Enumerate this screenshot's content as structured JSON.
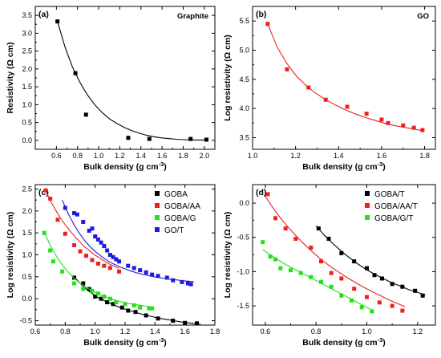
{
  "chart_data": [
    {
      "id": "a",
      "type": "scatter",
      "panel_label": "(a)",
      "inner_title": "Graphite",
      "xlabel": "Bulk density (g cm",
      "xlabel_sup": "-3",
      "xlabel_end": ")",
      "ylabel": "Resistivity (Ω cm)",
      "xlim": [
        0.4,
        2.1
      ],
      "ylim": [
        -0.25,
        3.75
      ],
      "xticks": [
        0.6,
        0.8,
        1.0,
        1.2,
        1.4,
        1.6,
        1.8,
        2.0
      ],
      "xtick_labels": [
        "0.6",
        "0.8",
        "1.0",
        "1.2",
        "1.4",
        "1.6",
        "1.8",
        "2.0"
      ],
      "yticks": [
        0.0,
        0.5,
        1.0,
        1.5,
        2.0,
        2.5,
        3.0,
        3.5
      ],
      "ytick_labels": [
        "0.0",
        "0.5",
        "1.0",
        "1.5",
        "2.0",
        "2.5",
        "3.0",
        "3.5"
      ],
      "grid": false,
      "series": [
        {
          "color": "#000000",
          "marker": "square",
          "x": [
            0.61,
            0.78,
            0.88,
            1.28,
            1.48,
            1.87,
            2.02
          ],
          "y": [
            3.33,
            1.88,
            0.72,
            0.07,
            0.04,
            0.04,
            0.02
          ],
          "fit": {
            "x0": 0.61,
            "x1": 2.02,
            "y": [
              3.33,
              2.62,
              2.06,
              1.63,
              1.28,
              1.0,
              0.78,
              0.6,
              0.47,
              0.36,
              0.27,
              0.2,
              0.14,
              0.1,
              0.07,
              0.05,
              0.03,
              0.02,
              0.01,
              0.01,
              0.01
            ]
          }
        }
      ]
    },
    {
      "id": "b",
      "type": "scatter",
      "panel_label": "(b)",
      "inner_title": "GO",
      "xlabel": "Bulk density (g cm",
      "xlabel_sup": "-3",
      "xlabel_end": ")",
      "ylabel": "Log resistivity (Ω cm)",
      "xlim": [
        1.0,
        1.85
      ],
      "ylim": [
        3.3,
        5.75
      ],
      "xticks": [
        1.0,
        1.2,
        1.4,
        1.6,
        1.8
      ],
      "xtick_labels": [
        "1.0",
        "1.2",
        "1.4",
        "1.6",
        "1.8"
      ],
      "yticks": [
        3.5,
        4.0,
        4.5,
        5.0,
        5.5
      ],
      "ytick_labels": [
        "3.5",
        "4.0",
        "4.5",
        "5.0",
        "5.5"
      ],
      "grid": false,
      "series": [
        {
          "color": "#e8231f",
          "marker": "square",
          "x": [
            1.07,
            1.16,
            1.26,
            1.34,
            1.44,
            1.53,
            1.6,
            1.63,
            1.7,
            1.75,
            1.79
          ],
          "y": [
            5.45,
            4.67,
            4.36,
            4.15,
            4.03,
            3.91,
            3.81,
            3.75,
            3.71,
            3.67,
            3.63
          ],
          "fit": {
            "x0": 1.07,
            "x1": 1.79,
            "y": [
              5.45,
              5.05,
              4.77,
              4.55,
              4.39,
              4.26,
              4.15,
              4.06,
              3.98,
              3.91,
              3.85,
              3.8,
              3.75,
              3.71,
              3.68,
              3.65,
              3.62
            ]
          }
        }
      ]
    },
    {
      "id": "c",
      "type": "scatter",
      "panel_label": "(c)",
      "xlabel": "Bulk density (g cm",
      "xlabel_sup": "-3",
      "xlabel_end": ")",
      "ylabel": "Log resistivity (Ω cm)",
      "xlim": [
        0.6,
        1.8
      ],
      "ylim": [
        -0.6,
        2.6
      ],
      "xticks": [
        0.6,
        0.8,
        1.0,
        1.2,
        1.4,
        1.6,
        1.8
      ],
      "xtick_labels": [
        "0.6",
        "0.8",
        "1.0",
        "1.2",
        "1.4",
        "1.6",
        "1.8"
      ],
      "yticks": [
        -0.5,
        0.0,
        0.5,
        1.0,
        1.5,
        2.0,
        2.5
      ],
      "ytick_labels": [
        "-0.5",
        "0.0",
        "0.5",
        "1.0",
        "1.5",
        "2.0",
        "2.5"
      ],
      "grid": false,
      "legend_position": "top-right",
      "series": [
        {
          "name": "GOBA",
          "color": "#000000",
          "marker": "square",
          "x": [
            0.86,
            0.92,
            0.96,
            1.0,
            1.04,
            1.08,
            1.12,
            1.18,
            1.22,
            1.27,
            1.34,
            1.42,
            1.52,
            1.6,
            1.68
          ],
          "y": [
            0.48,
            0.35,
            0.22,
            0.05,
            0.0,
            -0.08,
            -0.12,
            -0.2,
            -0.27,
            -0.3,
            -0.38,
            -0.45,
            -0.5,
            -0.55,
            -0.56
          ],
          "fit": {
            "x0": 0.86,
            "x1": 1.68,
            "y": [
              0.5,
              0.31,
              0.16,
              0.04,
              -0.05,
              -0.13,
              -0.2,
              -0.26,
              -0.31,
              -0.36,
              -0.4,
              -0.44,
              -0.47,
              -0.5,
              -0.53,
              -0.55,
              -0.57
            ]
          }
        },
        {
          "name": "GOBA/AA",
          "color": "#e8231f",
          "marker": "square",
          "x": [
            0.67,
            0.7,
            0.75,
            0.8,
            0.86,
            0.9,
            0.94,
            0.98,
            1.02,
            1.06,
            1.1,
            1.16
          ],
          "y": [
            2.47,
            2.28,
            1.8,
            1.48,
            1.22,
            1.08,
            0.98,
            0.88,
            0.8,
            0.75,
            0.7,
            0.62
          ],
          "fit": {
            "x0": 0.67,
            "x1": 1.16,
            "y": [
              2.45,
              2.22,
              2.02,
              1.84,
              1.68,
              1.54,
              1.41,
              1.29,
              1.18,
              1.09,
              1.0,
              0.93,
              0.86,
              0.79,
              0.74,
              0.69
            ]
          }
        },
        {
          "name": "GOBA/G",
          "color": "#22e01a",
          "marker": "square",
          "x": [
            0.66,
            0.7,
            0.72,
            0.78,
            0.86,
            0.92,
            0.98,
            1.02,
            1.06,
            1.1,
            1.14,
            1.2,
            1.26,
            1.3,
            1.36,
            1.38
          ],
          "y": [
            1.5,
            1.1,
            0.85,
            0.62,
            0.35,
            0.22,
            0.18,
            0.12,
            0.05,
            0.0,
            -0.08,
            -0.12,
            -0.15,
            -0.2,
            -0.22,
            -0.22
          ],
          "fit": {
            "x0": 0.66,
            "x1": 1.38,
            "y": [
              1.52,
              1.23,
              1.0,
              0.8,
              0.64,
              0.5,
              0.39,
              0.29,
              0.21,
              0.14,
              0.08,
              0.03,
              -0.01,
              -0.05,
              -0.08,
              -0.11,
              -0.13,
              -0.15,
              -0.17,
              -0.19
            ]
          }
        },
        {
          "name": "GO/T",
          "color": "#1c1ce0",
          "marker": "square",
          "x": [
            0.8,
            0.86,
            0.88,
            0.92,
            0.96,
            0.98,
            1.0,
            1.02,
            1.04,
            1.06,
            1.08,
            1.1,
            1.12,
            1.14,
            1.16,
            1.22,
            1.26,
            1.3,
            1.34,
            1.38,
            1.42,
            1.48,
            1.52,
            1.58,
            1.62,
            1.64
          ],
          "y": [
            2.07,
            1.95,
            1.92,
            1.75,
            1.55,
            1.6,
            1.42,
            1.35,
            1.28,
            1.2,
            1.1,
            1.0,
            0.95,
            0.9,
            0.85,
            0.75,
            0.7,
            0.65,
            0.6,
            0.55,
            0.52,
            0.48,
            0.42,
            0.38,
            0.35,
            0.33
          ],
          "fit": {
            "x0": 0.78,
            "x1": 1.66,
            "y": [
              2.25,
              1.95,
              1.7,
              1.49,
              1.31,
              1.17,
              1.05,
              0.95,
              0.86,
              0.79,
              0.73,
              0.68,
              0.63,
              0.59,
              0.56,
              0.53,
              0.5,
              0.48,
              0.46,
              0.44,
              0.43,
              0.41,
              0.4,
              0.39
            ]
          }
        }
      ]
    },
    {
      "id": "d",
      "type": "scatter",
      "panel_label": "(d)",
      "xlabel": "Bulk density (g cm",
      "xlabel_sup": "-3",
      "xlabel_end": ")",
      "ylabel": "Log resistivity (Ω cm)",
      "xlim": [
        0.55,
        1.27
      ],
      "ylim": [
        -1.78,
        0.27
      ],
      "xticks": [
        0.6,
        0.8,
        1.0,
        1.2
      ],
      "xtick_labels": [
        "0.6",
        "0.8",
        "1.0",
        "1.2"
      ],
      "yticks": [
        -1.5,
        -1.0,
        -0.5,
        0.0
      ],
      "ytick_labels": [
        "-1.5",
        "-1.0",
        "-0.5",
        "0.0"
      ],
      "grid": false,
      "legend_position": "top-right",
      "series": [
        {
          "name": "GOBA/T",
          "color": "#000000",
          "marker": "square",
          "x": [
            0.81,
            0.85,
            0.9,
            0.95,
            1.0,
            1.03,
            1.06,
            1.1,
            1.14,
            1.19,
            1.22
          ],
          "y": [
            -0.37,
            -0.52,
            -0.73,
            -0.85,
            -0.95,
            -1.05,
            -1.1,
            -1.18,
            -1.22,
            -1.28,
            -1.35
          ],
          "fit": {
            "x0": 0.8,
            "x1": 1.23,
            "y": [
              -0.33,
              -0.47,
              -0.59,
              -0.7,
              -0.8,
              -0.89,
              -0.97,
              -1.04,
              -1.1,
              -1.16,
              -1.21,
              -1.26,
              -1.3,
              -1.34
            ]
          }
        },
        {
          "name": "GOBA/AA/T",
          "color": "#e8231f",
          "marker": "square",
          "x": [
            0.61,
            0.64,
            0.68,
            0.72,
            0.78,
            0.82,
            0.86,
            0.9,
            0.95,
            1.0,
            1.05,
            1.1,
            1.14
          ],
          "y": [
            0.13,
            -0.22,
            -0.37,
            -0.52,
            -0.65,
            -0.85,
            -1.02,
            -1.1,
            -1.25,
            -1.37,
            -1.45,
            -1.5,
            -1.57
          ],
          "fit": {
            "x0": 0.6,
            "x1": 1.15,
            "y": [
              0.1,
              -0.08,
              -0.24,
              -0.38,
              -0.51,
              -0.63,
              -0.74,
              -0.84,
              -0.93,
              -1.01,
              -1.09,
              -1.16,
              -1.23,
              -1.29,
              -1.35,
              -1.41,
              -1.46,
              -1.51
            ]
          }
        },
        {
          "name": "GOBA/G/T",
          "color": "#22e01a",
          "marker": "square",
          "x": [
            0.59,
            0.62,
            0.64,
            0.66,
            0.7,
            0.74,
            0.78,
            0.82,
            0.86,
            0.9,
            0.94,
            0.98,
            1.02
          ],
          "y": [
            -0.57,
            -0.78,
            -0.82,
            -0.95,
            -0.98,
            -1.02,
            -1.08,
            -1.15,
            -1.22,
            -1.35,
            -1.42,
            -1.52,
            -1.58
          ],
          "fit": {
            "x0": 0.59,
            "x1": 1.02,
            "y": [
              -0.68,
              -0.76,
              -0.83,
              -0.9,
              -0.96,
              -1.02,
              -1.08,
              -1.14,
              -1.2,
              -1.26,
              -1.32,
              -1.38,
              -1.44,
              -1.5,
              -1.56
            ]
          }
        }
      ]
    }
  ]
}
